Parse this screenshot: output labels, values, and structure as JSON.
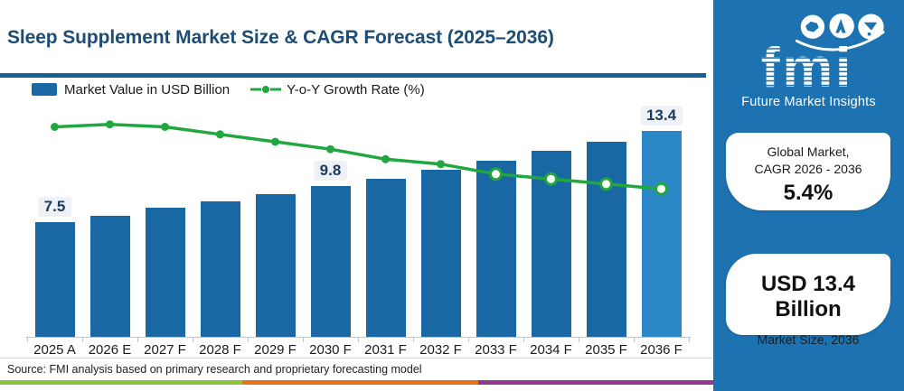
{
  "header": {
    "title": "Sleep Supplement Market Size & CAGR Forecast (2025–2036)"
  },
  "legend": {
    "bar_label": "Market Value in USD Billion",
    "line_label": "Y-o-Y Growth Rate (%)"
  },
  "chart_data": {
    "type": "bar",
    "subtype": "bar+line combo",
    "categories": [
      "2025 A",
      "2026 E",
      "2027 F",
      "2028 F",
      "2029 F",
      "2030 F",
      "2031 F",
      "2032 F",
      "2033 F",
      "2034 F",
      "2035 F",
      "2036 F"
    ],
    "series": [
      {
        "name": "Market Value in USD Billion",
        "type": "bar",
        "values": [
          7.5,
          7.9,
          8.4,
          8.8,
          9.3,
          9.8,
          10.3,
          10.9,
          11.5,
          12.1,
          12.7,
          13.4
        ]
      },
      {
        "name": "Y-o-Y Growth Rate (%)",
        "type": "line",
        "values": [
          5.95,
          6.0,
          5.95,
          5.8,
          5.65,
          5.5,
          5.3,
          5.2,
          5.0,
          4.9,
          4.8,
          4.7
        ],
        "note": "line has no printed labels; values estimated from plotted position"
      }
    ],
    "bar_value_labels": [
      {
        "category": "2025 A",
        "text": "7.5"
      },
      {
        "category": "2030 F",
        "text": "9.8"
      },
      {
        "category": "2036 F",
        "text": "13.4"
      }
    ],
    "highlighted_category": "2036 F",
    "hollow_marker_start_index": 8,
    "bar_ylim": [
      0,
      14.5
    ],
    "grid": false,
    "legend_position": "top-left"
  },
  "source": {
    "text": "Source: FMI analysis based on primary research and proprietary forecasting model"
  },
  "sidebar": {
    "logo": {
      "monogram": "fmi",
      "caption": "Future Market Insights"
    },
    "cagr_card": {
      "line1": "Global Market,",
      "line2": "CAGR 2026 - 2036",
      "value": "5.4%"
    },
    "size_card": {
      "value": "USD 13.4 Billion",
      "label": "Market Size, 2036"
    }
  },
  "colors": {
    "bar-blue": "#1a68a3",
    "bar-highlight": "#2b87c6",
    "growth-green": "#21a73f",
    "title-navy": "#1d4d74",
    "divider-blue": "#15618f",
    "sidebar-blue": "#1d73b2",
    "chip-bg": "#eef2f7",
    "value-navy": "#1b3a5e",
    "stripe-green": "#8bc43f",
    "stripe-orange": "#e8711e",
    "stripe-purple": "#8e3a8e"
  }
}
